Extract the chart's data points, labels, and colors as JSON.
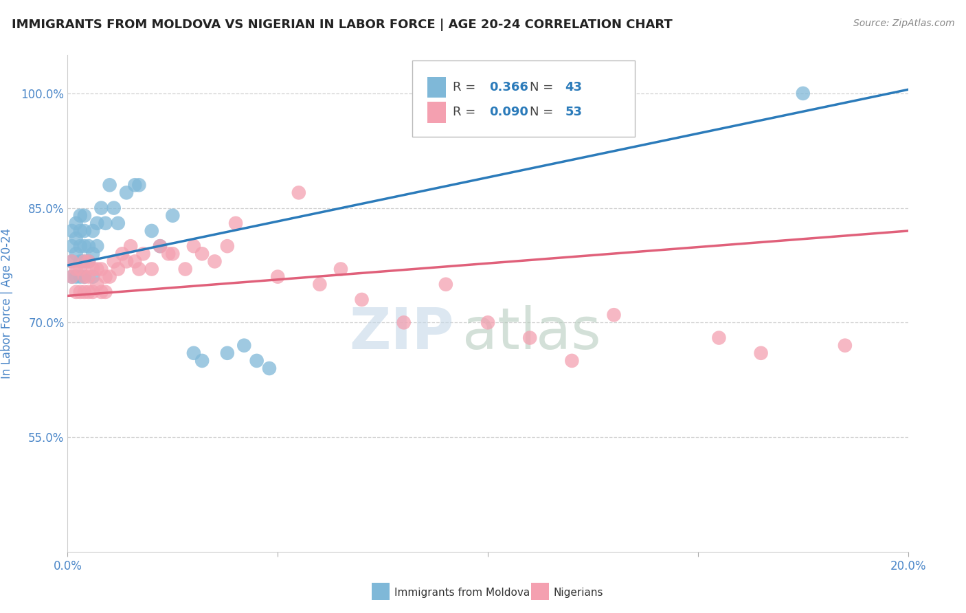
{
  "title": "IMMIGRANTS FROM MOLDOVA VS NIGERIAN IN LABOR FORCE | AGE 20-24 CORRELATION CHART",
  "source": "Source: ZipAtlas.com",
  "ylabel": "In Labor Force | Age 20-24",
  "background_color": "#ffffff",
  "plot_bg_color": "#ffffff",
  "title_color": "#222222",
  "axis_label_color": "#4a86c8",
  "grid_color": "#d0d0d0",
  "xlim": [
    0.0,
    0.2
  ],
  "ylim": [
    0.4,
    1.05
  ],
  "xticks": [
    0.0,
    0.05,
    0.1,
    0.15,
    0.2
  ],
  "xtick_labels": [
    "0.0%",
    "",
    "",
    "",
    "20.0%"
  ],
  "yticks": [
    0.55,
    0.7,
    0.85,
    1.0
  ],
  "ytick_labels": [
    "55.0%",
    "70.0%",
    "85.0%",
    "100.0%"
  ],
  "moldova_R": 0.366,
  "moldova_N": 43,
  "nigeria_R": 0.09,
  "nigeria_N": 53,
  "moldova_color": "#7fb8d8",
  "nigeria_color": "#f4a0b0",
  "trendline_moldova_color": "#2b7bba",
  "trendline_nigeria_color": "#e0607a",
  "moldova_x": [
    0.001,
    0.001,
    0.001,
    0.001,
    0.002,
    0.002,
    0.002,
    0.002,
    0.003,
    0.003,
    0.003,
    0.003,
    0.003,
    0.004,
    0.004,
    0.004,
    0.004,
    0.004,
    0.005,
    0.005,
    0.006,
    0.006,
    0.006,
    0.007,
    0.007,
    0.008,
    0.009,
    0.01,
    0.011,
    0.012,
    0.014,
    0.016,
    0.017,
    0.02,
    0.022,
    0.025,
    0.03,
    0.032,
    0.038,
    0.042,
    0.045,
    0.048,
    0.175
  ],
  "moldova_y": [
    0.76,
    0.78,
    0.8,
    0.82,
    0.76,
    0.79,
    0.81,
    0.83,
    0.76,
    0.78,
    0.8,
    0.82,
    0.84,
    0.76,
    0.78,
    0.8,
    0.82,
    0.84,
    0.78,
    0.8,
    0.76,
    0.79,
    0.82,
    0.8,
    0.83,
    0.85,
    0.83,
    0.88,
    0.85,
    0.83,
    0.87,
    0.88,
    0.88,
    0.82,
    0.8,
    0.84,
    0.66,
    0.65,
    0.66,
    0.67,
    0.65,
    0.64,
    1.0
  ],
  "nigeria_x": [
    0.001,
    0.001,
    0.002,
    0.002,
    0.003,
    0.003,
    0.004,
    0.004,
    0.004,
    0.005,
    0.005,
    0.005,
    0.006,
    0.006,
    0.007,
    0.007,
    0.008,
    0.008,
    0.009,
    0.009,
    0.01,
    0.011,
    0.012,
    0.013,
    0.014,
    0.015,
    0.016,
    0.017,
    0.018,
    0.02,
    0.022,
    0.024,
    0.025,
    0.028,
    0.03,
    0.032,
    0.035,
    0.038,
    0.04,
    0.05,
    0.055,
    0.06,
    0.065,
    0.07,
    0.08,
    0.09,
    0.1,
    0.11,
    0.12,
    0.13,
    0.155,
    0.165,
    0.185
  ],
  "nigeria_y": [
    0.76,
    0.78,
    0.74,
    0.77,
    0.74,
    0.77,
    0.74,
    0.76,
    0.78,
    0.74,
    0.76,
    0.78,
    0.74,
    0.77,
    0.75,
    0.77,
    0.74,
    0.77,
    0.74,
    0.76,
    0.76,
    0.78,
    0.77,
    0.79,
    0.78,
    0.8,
    0.78,
    0.77,
    0.79,
    0.77,
    0.8,
    0.79,
    0.79,
    0.77,
    0.8,
    0.79,
    0.78,
    0.8,
    0.83,
    0.76,
    0.87,
    0.75,
    0.77,
    0.73,
    0.7,
    0.75,
    0.7,
    0.68,
    0.65,
    0.71,
    0.68,
    0.66,
    0.67
  ]
}
